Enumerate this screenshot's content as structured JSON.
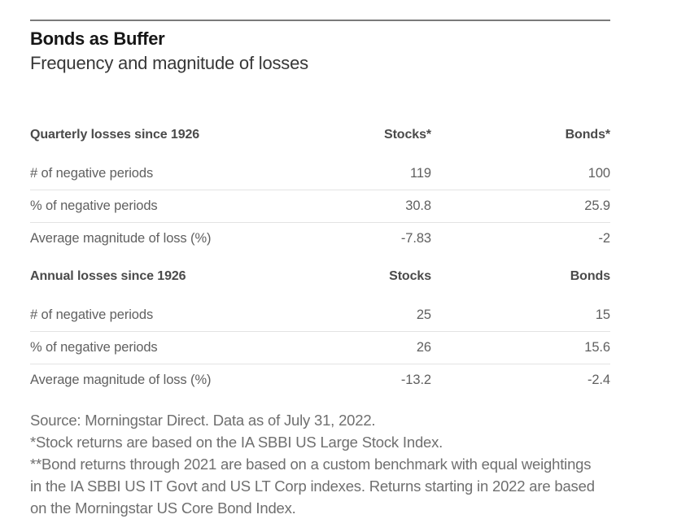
{
  "chart_data": {
    "type": "table",
    "title": "Bonds as Buffer",
    "subtitle": "Frequency and magnitude of losses",
    "sections": [
      {
        "header": [
          "Quarterly losses since 1926",
          "Stocks*",
          "Bonds*"
        ],
        "rows": [
          {
            "label": "# of negative periods",
            "stocks": "119",
            "bonds": "100"
          },
          {
            "label": "% of negative periods",
            "stocks": "30.8",
            "bonds": "25.9"
          },
          {
            "label": "Average magnitude of loss (%)",
            "stocks": "-7.83",
            "bonds": "-2"
          }
        ]
      },
      {
        "header": [
          "Annual losses since 1926",
          "Stocks",
          "Bonds"
        ],
        "rows": [
          {
            "label": "# of negative periods",
            "stocks": "25",
            "bonds": "15"
          },
          {
            "label": "% of negative periods",
            "stocks": "26",
            "bonds": "15.6"
          },
          {
            "label": "Average magnitude of loss (%)",
            "stocks": "-13.2",
            "bonds": "-2.4"
          }
        ]
      }
    ],
    "footnotes": [
      "Source: Morningstar Direct. Data as of July 31, 2022.",
      "*Stock returns are based on the IA SBBI US Large Stock Index.",
      "**Bond returns through 2021 are based on a custom benchmark with equal weightings",
      "in the IA SBBI US IT Govt and US LT Corp indexes. Returns starting in 2022 are based",
      "on the Morningstar US Core Bond Index."
    ]
  },
  "colors": {
    "top_rule": "#7a7a7a",
    "row_divider": "#e3e3e3",
    "title_text": "#161616",
    "subtitle_text": "#373737",
    "header_text": "#4a4a4a",
    "body_text": "#606060",
    "footnote_text": "#6f6f6f",
    "background": "#ffffff"
  }
}
